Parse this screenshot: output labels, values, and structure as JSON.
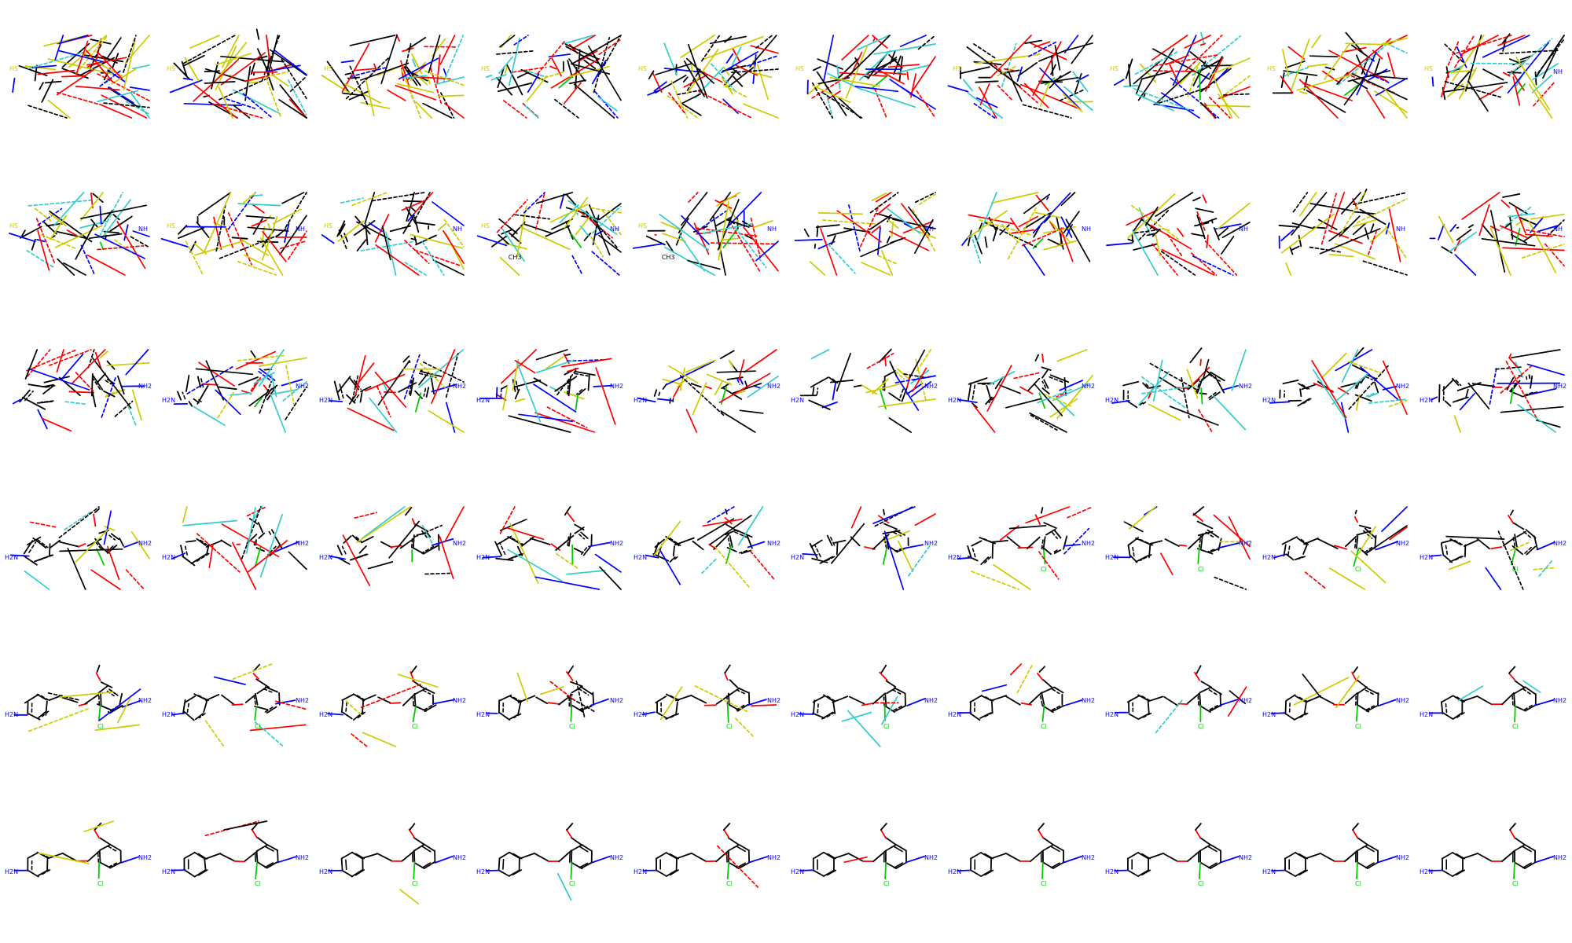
{
  "grid": {
    "rows": 6,
    "cols": 10
  },
  "colors": {
    "carbon": "#000000",
    "oxygen": "#ff0000",
    "nitrogen": "#0000ff",
    "sulfur": "#cccc00",
    "fluorine": "#33cccc",
    "chlorine": "#00cc00"
  },
  "labels": {
    "amine_left": "H2N",
    "amine_right": "NH2",
    "chloro": "Cl",
    "imine": "NH",
    "thiol": "HS",
    "methyl": "CH3"
  },
  "final_molecule": "4-[(4-aminophenyl)methoxy]-3-chloro-5-methoxyaniline"
}
